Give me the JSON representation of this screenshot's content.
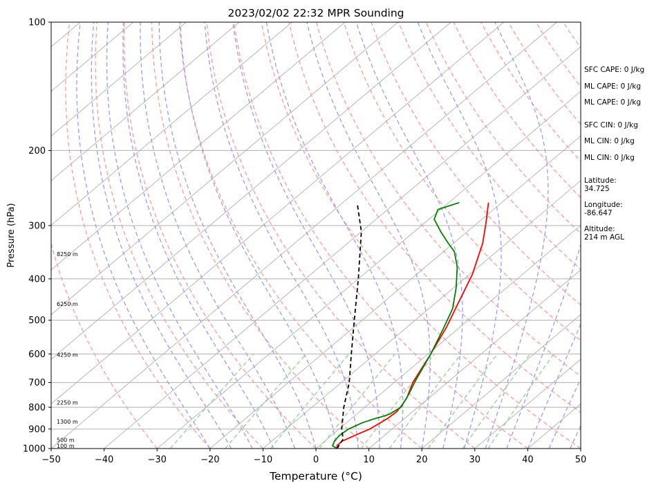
{
  "chart_data": {
    "type": "line",
    "title": "2023/02/02 22:32 MPR Sounding",
    "xlabel": "Temperature (°C)",
    "ylabel": "Pressure (hPa)",
    "xlim": [
      -50,
      50
    ],
    "ylim": [
      1000,
      100
    ],
    "y_scale": "log",
    "grid": true,
    "x_ticks": [
      "−50",
      "−40",
      "−30",
      "−20",
      "−10",
      "0",
      "10",
      "20",
      "30",
      "40",
      "50"
    ],
    "y_ticks": [
      "1000",
      "900",
      "800",
      "700",
      "600",
      "500",
      "400",
      "300",
      "200",
      "100"
    ],
    "height_labels": [
      {
        "pressure": 985,
        "label": "100 m"
      },
      {
        "pressure": 955,
        "label": "500 m"
      },
      {
        "pressure": 865,
        "label": "1300 m"
      },
      {
        "pressure": 780,
        "label": "2250 m"
      },
      {
        "pressure": 603,
        "label": "4250 m"
      },
      {
        "pressure": 458,
        "label": "6250 m"
      },
      {
        "pressure": 350,
        "label": "8250 m"
      }
    ],
    "series": [
      {
        "color": "#ff0000",
        "x": [
          3.9,
          3.3,
          3.3,
          4.5,
          5.8,
          6.8,
          7.0,
          6.5,
          5.8,
          3.5,
          0.5,
          -2.5,
          -5.5,
          -9.5,
          -14.5,
          -18.5,
          -22.5
        ],
        "pressure": [
          1000,
          980,
          960,
          930,
          900,
          850,
          820,
          790,
          760,
          700,
          600,
          520,
          460,
          390,
          330,
          295,
          265
        ]
      },
      {
        "color": "#008000",
        "x": [
          4.0,
          2.5,
          1.8,
          1.5,
          1.8,
          3.0,
          4.5,
          5.5,
          6.2,
          6.8,
          5.5,
          3.5,
          0.5,
          -2.5,
          -5.5,
          -9.5,
          -14.0,
          -18.0,
          -21.0,
          -25.0,
          -29.0,
          -30.5,
          -28.0
        ],
        "pressure": [
          1000,
          985,
          960,
          930,
          900,
          870,
          850,
          840,
          830,
          800,
          750,
          690,
          600,
          530,
          470,
          420,
          375,
          345,
          330,
          310,
          290,
          275,
          265
        ]
      },
      {
        "color": "#000000",
        "style": "dashed",
        "x": [
          4.0,
          3.0,
          0.5,
          -4.0,
          -8.5,
          -14.5,
          -21.5,
          -30.0,
          -40.0,
          -47.3
        ],
        "pressure": [
          1000,
          950,
          900,
          800,
          700,
          600,
          500,
          400,
          310,
          265
        ]
      }
    ],
    "background_lines": [
      {
        "kind": "dry adiabats",
        "color": "#ff9999",
        "style": "dashed"
      },
      {
        "kind": "moist adiabats",
        "color": "#9999ff",
        "style": "dashed"
      },
      {
        "kind": "mixing ratio",
        "color": "#99cc99",
        "style": "dashed"
      },
      {
        "kind": "isotherms",
        "color": "#b0b0b0",
        "style": "solid"
      }
    ]
  },
  "info": {
    "sfc_cape": "SFC CAPE: 0 J/kg",
    "ml_cape_1": "ML CAPE: 0 J/kg",
    "ml_cape_2": "ML CAPE: 0 J/kg",
    "sfc_cin": "SFC CIN: 0 J/kg",
    "ml_cin_1": "ML CIN: 0 J/kg",
    "ml_cin_2": "ML CIN: 0 J/kg",
    "latitude": "Latitude:\n34.725",
    "longitude": "Longitude:\n-86.647",
    "altitude": "Altitude:\n214 m AGL"
  }
}
